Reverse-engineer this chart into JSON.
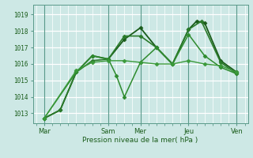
{
  "title": "",
  "xlabel": "Pression niveau de la mer( hPa )",
  "bg_color": "#cde8e5",
  "grid_color": "#b0d8d4",
  "vline_color": "#5a9a8a",
  "ylim": [
    1012.4,
    1019.6
  ],
  "xlim": [
    -0.2,
    13.2
  ],
  "yticks": [
    1013,
    1014,
    1015,
    1016,
    1017,
    1018,
    1019
  ],
  "xtick_labels": [
    "Mar",
    "Sam",
    "Mer",
    "Jeu",
    "Ven"
  ],
  "xtick_positions": [
    0.5,
    4.5,
    6.5,
    9.5,
    12.5
  ],
  "vline_positions": [
    0.5,
    4.5,
    6.5,
    9.5,
    12.5
  ],
  "series": [
    {
      "x": [
        0.5,
        1.5,
        2.5,
        3.5,
        4.5,
        5.5,
        6.5,
        7.5,
        8.5,
        9.5,
        10.0,
        10.5,
        11.5,
        12.5
      ],
      "y": [
        1012.7,
        1013.2,
        1015.5,
        1016.5,
        1016.3,
        1017.5,
        1018.2,
        1017.0,
        1016.0,
        1018.1,
        1018.6,
        1018.5,
        1016.2,
        1015.5
      ],
      "color": "#1a5c1a",
      "lw": 1.3,
      "ms": 2.5
    },
    {
      "x": [
        0.5,
        1.5,
        2.5,
        3.5,
        4.5,
        5.5,
        6.5,
        7.5,
        8.5,
        9.5,
        10.3,
        11.5,
        12.5
      ],
      "y": [
        1012.7,
        1013.2,
        1015.5,
        1016.2,
        1016.3,
        1017.7,
        1017.7,
        1017.0,
        1016.0,
        1018.1,
        1018.6,
        1016.1,
        1015.4
      ],
      "color": "#2a7a2a",
      "lw": 1.2,
      "ms": 2.5
    },
    {
      "x": [
        0.5,
        2.5,
        3.5,
        4.5,
        5.0,
        5.5,
        6.5,
        7.5,
        8.5,
        9.5,
        10.5,
        11.5,
        12.5
      ],
      "y": [
        1012.7,
        1015.5,
        1016.5,
        1016.3,
        1015.3,
        1014.0,
        1016.1,
        1017.0,
        1016.0,
        1017.8,
        1016.5,
        1015.8,
        1015.4
      ],
      "color": "#2e8b2e",
      "lw": 1.1,
      "ms": 2.5
    },
    {
      "x": [
        0.5,
        2.5,
        3.5,
        4.5,
        5.5,
        6.5,
        7.5,
        8.5,
        9.5,
        10.5,
        11.5,
        12.5
      ],
      "y": [
        1012.7,
        1015.6,
        1016.1,
        1016.2,
        1016.2,
        1016.1,
        1016.0,
        1016.0,
        1016.2,
        1016.0,
        1015.9,
        1015.5
      ],
      "color": "#3a9a3a",
      "lw": 1.0,
      "ms": 2.5
    }
  ]
}
